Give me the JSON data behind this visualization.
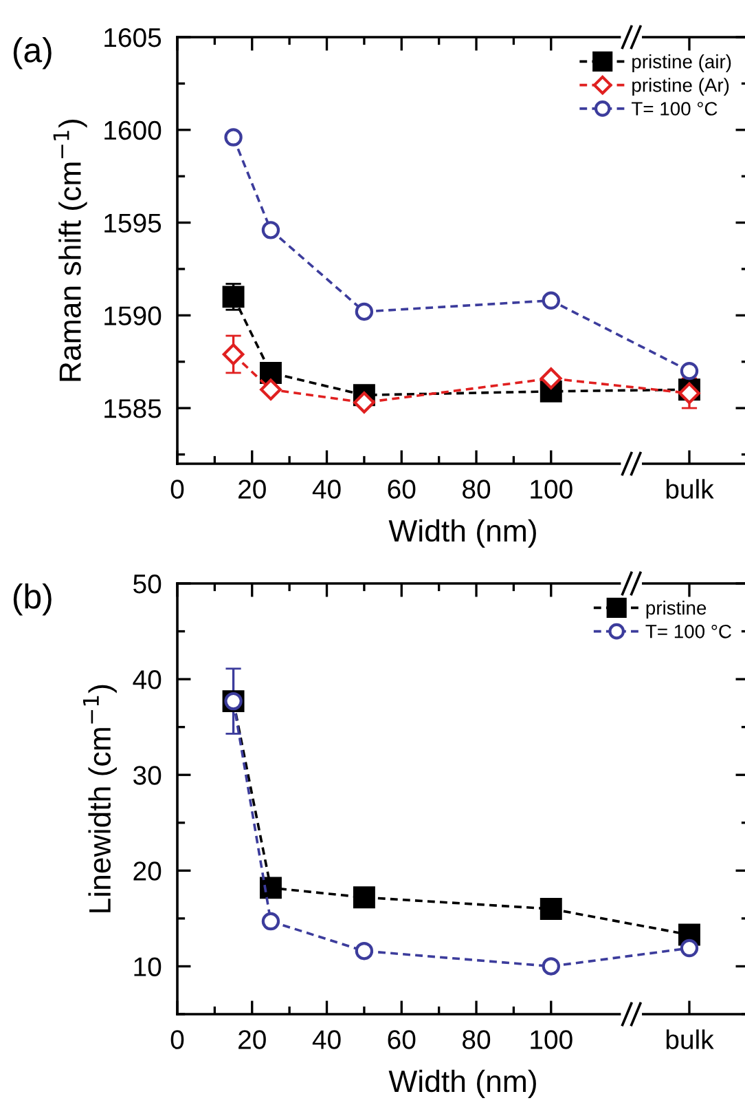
{
  "chart_data": [
    {
      "type": "line",
      "annotations": [
        "(a)"
      ],
      "xlabel": "Width (nm)",
      "ylabel": "Raman shift (cm$^{−1}$)",
      "x": [
        15,
        25,
        50,
        100,
        137
      ],
      "xlim": [
        0,
        153
      ],
      "xticks": [
        0,
        20,
        40,
        60,
        80,
        100,
        {
          "value": 137,
          "label": "bulk"
        }
      ],
      "ylim": [
        1582,
        1605
      ],
      "yticks": [
        1585,
        1590,
        1595,
        1600,
        1605
      ],
      "grid": false,
      "legend": "top right",
      "line_style": "dashed",
      "series": [
        {
          "name": "pristine (air)",
          "color": "#000000",
          "marker": "square",
          "values": [
            1591.0,
            1586.9,
            1585.7,
            1585.9,
            1586.0
          ],
          "errors": [
            0.7,
            null,
            null,
            null,
            null
          ]
        },
        {
          "name": "pristine (Ar)",
          "color": "#e02020",
          "marker": "diamond",
          "values": [
            1587.9,
            1586.0,
            1585.3,
            1586.6,
            1585.8
          ],
          "errors": [
            1.0,
            null,
            null,
            null,
            0.8
          ]
        },
        {
          "name": "T= 100 °C",
          "color": "#3c3c9c",
          "marker": "circle",
          "values": [
            1599.6,
            1594.6,
            1590.2,
            1590.8,
            1587.0
          ]
        }
      ]
    },
    {
      "type": "line",
      "annotations": [
        "(b)"
      ],
      "xlabel": "Width (nm)",
      "ylabel": "Linewidth (cm$^{−1}$)",
      "x": [
        15,
        25,
        50,
        100,
        137
      ],
      "xlim": [
        0,
        153
      ],
      "xticks": [
        0,
        20,
        40,
        60,
        80,
        100,
        {
          "value": 137,
          "label": "bulk"
        }
      ],
      "ylim": [
        5,
        50
      ],
      "yticks": [
        10,
        20,
        30,
        40,
        50
      ],
      "grid": false,
      "legend": "top right",
      "line_style": "dashed",
      "series": [
        {
          "name": "pristine",
          "color": "#000000",
          "marker": "square",
          "values": [
            37.7,
            18.2,
            17.2,
            16.0,
            13.3
          ]
        },
        {
          "name": "T= 100 °C",
          "color": "#3c3c9c",
          "marker": "circle",
          "values": [
            37.7,
            14.7,
            11.6,
            10.0,
            11.9
          ],
          "errors": [
            3.4,
            null,
            null,
            null,
            null
          ]
        }
      ]
    }
  ]
}
